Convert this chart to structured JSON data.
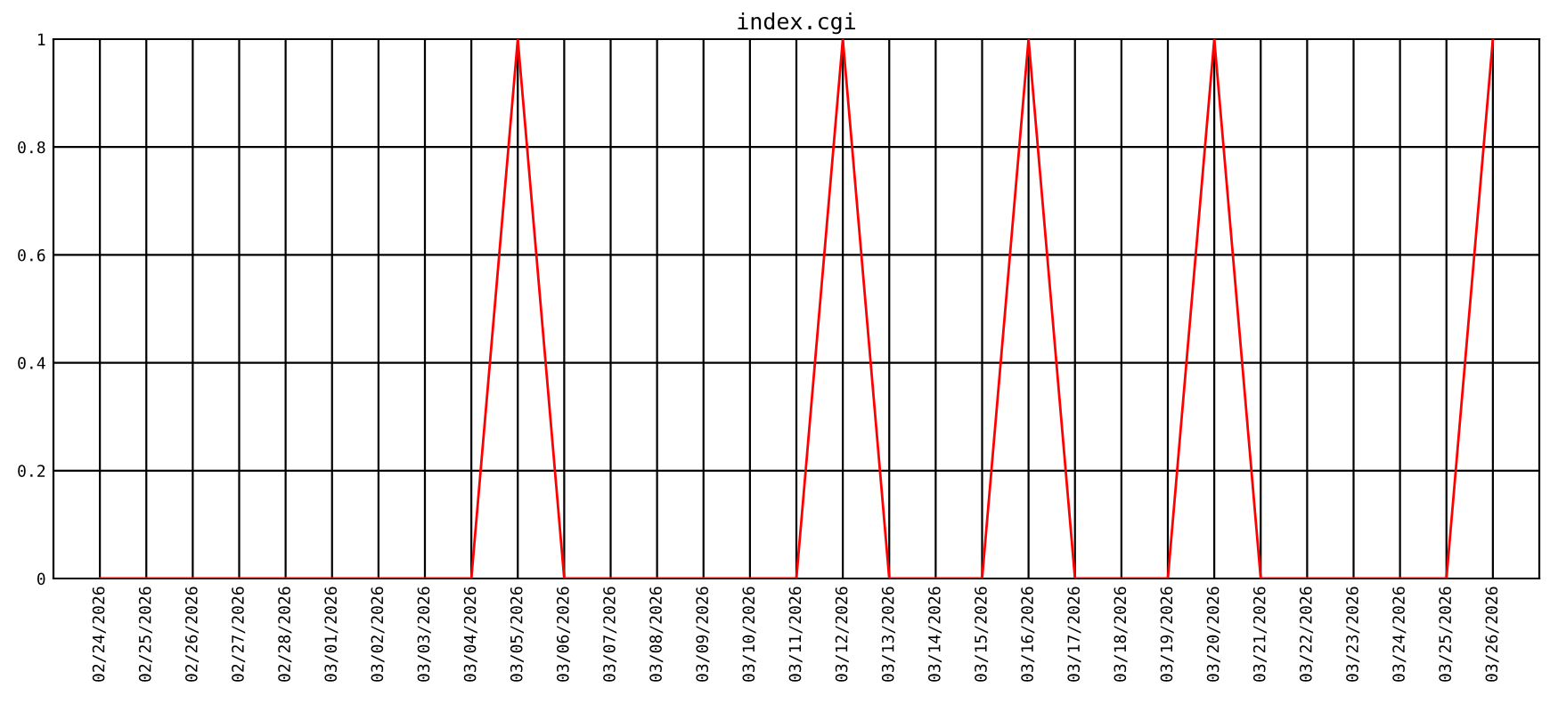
{
  "chart_data": {
    "type": "line",
    "title": "index.cgi",
    "categories": [
      "02/24/2026",
      "02/25/2026",
      "02/26/2026",
      "02/27/2026",
      "02/28/2026",
      "03/01/2026",
      "03/02/2026",
      "03/03/2026",
      "03/04/2026",
      "03/05/2026",
      "03/06/2026",
      "03/07/2026",
      "03/08/2026",
      "03/09/2026",
      "03/10/2026",
      "03/11/2026",
      "03/12/2026",
      "03/13/2026",
      "03/14/2026",
      "03/15/2026",
      "03/16/2026",
      "03/17/2026",
      "03/18/2026",
      "03/19/2026",
      "03/20/2026",
      "03/21/2026",
      "03/22/2026",
      "03/23/2026",
      "03/24/2026",
      "03/25/2026",
      "03/26/2026"
    ],
    "series": [
      {
        "color": "#ff0000",
        "values": [
          0,
          0,
          0,
          0,
          0,
          0,
          0,
          0,
          0,
          1,
          0,
          0,
          0,
          0,
          0,
          0,
          1,
          0,
          0,
          0,
          1,
          0,
          0,
          0,
          1,
          0,
          0,
          0,
          0,
          0,
          1
        ]
      }
    ],
    "ylim": [
      0,
      1
    ],
    "yticks": [
      0,
      0.2,
      0.4,
      0.6,
      0.8,
      1
    ],
    "grid": true,
    "marker": "none",
    "line_style": "solid"
  }
}
